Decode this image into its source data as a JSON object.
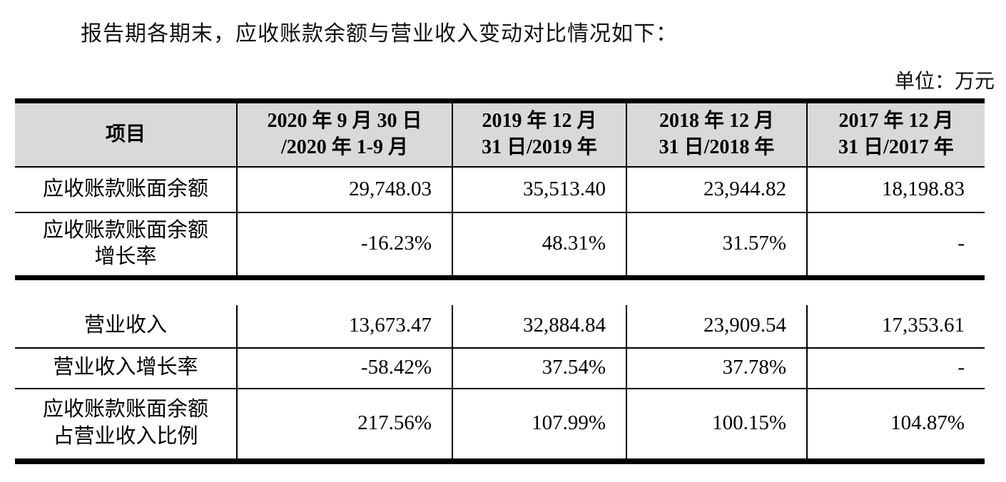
{
  "title": "报告期各期末，应收账款余额与营业收入变动对比情况如下：",
  "unit_label": "单位：万元",
  "colors": {
    "header_bg": "#d9d9d9",
    "border": "#000000",
    "text": "#111111"
  },
  "table": {
    "header": {
      "item_label": "项目",
      "periods": [
        {
          "line1": "2020 年 9 月 30 日",
          "line2": "/2020 年 1-9 月"
        },
        {
          "line1": "2019 年 12 月",
          "line2": "31 日/2019 年"
        },
        {
          "line1": "2018 年 12 月",
          "line2": "31 日/2018 年"
        },
        {
          "line1": "2017 年 12 月",
          "line2": "31 日/2017 年"
        }
      ]
    },
    "rows": [
      {
        "label_line1": "应收账款账面余额",
        "label_line2": "",
        "values": [
          "29,748.03",
          "35,513.40",
          "23,944.82",
          "18,198.83"
        ]
      },
      {
        "label_line1": "应收账款账面余额",
        "label_line2": "增长率",
        "values": [
          "-16.23%",
          "48.31%",
          "31.57%",
          "-"
        ]
      },
      {
        "label_line1": "营业收入",
        "label_line2": "",
        "values": [
          "13,673.47",
          "32,884.84",
          "23,909.54",
          "17,353.61"
        ]
      },
      {
        "label_line1": "营业收入增长率",
        "label_line2": "",
        "values": [
          "-58.42%",
          "37.54%",
          "37.78%",
          "-"
        ]
      },
      {
        "label_line1": "应收账款账面余额",
        "label_line2": "占营业收入比例",
        "values": [
          "217.56%",
          "107.99%",
          "100.15%",
          "104.87%"
        ]
      }
    ]
  }
}
